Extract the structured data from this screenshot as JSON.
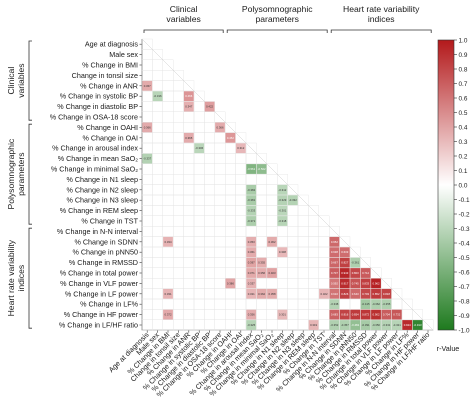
{
  "chart_data": {
    "type": "heatmap",
    "subtype": "lower-triangular correlation matrix",
    "rows": [
      "Age at diagnosis",
      "Male sex",
      "% Change in BMI",
      "Change in tonsil size",
      "% Change in ANR",
      "% Change in systolic BP",
      "% Change in diastolic BP",
      "% Change in OSA-18 score",
      "% Change in OAHI",
      "% Change in OAI",
      "% Change in arousal index",
      "% Change in mean SaO₂",
      "% Change in minimal SaO₂",
      "% Change in N1 sleep",
      "% Change in N2 sleep",
      "% Change in N3 sleep",
      "% Change in REM sleep",
      "% Change in TST",
      "% Change in N-N interval",
      "% Change in SDNN",
      "% Change in pNN50",
      "% Change in RMSSD",
      "% Change in total power",
      "% Change in VLF power",
      "% Change in LF power",
      "% Change in LF%",
      "% Change in HF power",
      "% Change in LF/HF ratio"
    ],
    "columns": [
      "Age at diagnosis",
      "Male sex",
      "% Change in BMI",
      "Change in tonsil size",
      "% Change in ANR",
      "% Change in systolic BP",
      "% Change in diastolic BP",
      "% Change in OSA-18 score",
      "% Change in OAHI",
      "% Change in OAI",
      "% Change in arousal index",
      "% Change in mean SaO₂",
      "% Change in minimal SaO₂",
      "% Change in N1 sleep",
      "% Change in N2 sleep",
      "% Change in N3 sleep",
      "% Change in REM sleep",
      "% Change in TST",
      "% Change in N-N interval",
      "% Change in SDNN",
      "% Change in pNN50",
      "% Change in RMSSD",
      "% Change in total power",
      "% Change in VLF power",
      "% Change in LF power",
      "% Change in LF%",
      "% Change in HF power",
      "% Change in LF/HF ratio"
    ],
    "row_groups": [
      {
        "label_lines": [
          "Clinical",
          "variables"
        ],
        "first": 0,
        "last": 7
      },
      {
        "label_lines": [
          "Polysomnographic",
          "parameters"
        ],
        "first": 8,
        "last": 17
      },
      {
        "label_lines": [
          "Heart rate variability",
          "indices"
        ],
        "first": 18,
        "last": 27
      }
    ],
    "column_groups": [
      {
        "label_lines": [
          "Clinical",
          "variables"
        ],
        "first": 0,
        "last": 7
      },
      {
        "label_lines": [
          "Polysomnographic",
          "parameters"
        ],
        "first": 8,
        "last": 17
      },
      {
        "label_lines": [
          "Heart rate variability",
          "indices"
        ],
        "first": 18,
        "last": 27
      }
    ],
    "cells": [
      {
        "row": 4,
        "col": 0,
        "r": 0.367,
        "label": "0.367"
      },
      {
        "row": 5,
        "col": 1,
        "r": -0.316,
        "label": "-0.316"
      },
      {
        "row": 5,
        "col": 4,
        "r": 0.466,
        "label": "0.466"
      },
      {
        "row": 6,
        "col": 4,
        "r": 0.347,
        "label": "0.347"
      },
      {
        "row": 6,
        "col": 6,
        "r": 0.422,
        "label": "0.422"
      },
      {
        "row": 8,
        "col": 0,
        "r": 0.366,
        "label": "0.366"
      },
      {
        "row": 8,
        "col": 7,
        "r": 0.366,
        "label": "0.366"
      },
      {
        "row": 9,
        "col": 4,
        "r": 0.365,
        "label": "0.365"
      },
      {
        "row": 9,
        "col": 8,
        "r": 0.452,
        "label": "0.452"
      },
      {
        "row": 10,
        "col": 5,
        "r": -0.306,
        "label": "-0.306"
      },
      {
        "row": 10,
        "col": 9,
        "r": 0.312,
        "label": "0.312"
      },
      {
        "row": 11,
        "col": 0,
        "r": -0.337,
        "label": "-0.337"
      },
      {
        "row": 12,
        "col": 10,
        "r": -0.561,
        "label": "-0.561"
      },
      {
        "row": 12,
        "col": 11,
        "r": -0.502,
        "label": "-0.502"
      },
      {
        "row": 14,
        "col": 10,
        "r": -0.382,
        "label": "-0.382"
      },
      {
        "row": 14,
        "col": 13,
        "r": -0.312,
        "label": "-0.312"
      },
      {
        "row": 15,
        "col": 10,
        "r": -0.381,
        "label": "-0.381"
      },
      {
        "row": 15,
        "col": 13,
        "r": -0.329,
        "label": "-0.329"
      },
      {
        "row": 15,
        "col": 14,
        "r": -0.332,
        "label": "-0.332"
      },
      {
        "row": 16,
        "col": 10,
        "r": -0.333,
        "label": "-0.333"
      },
      {
        "row": 16,
        "col": 13,
        "r": -0.301,
        "label": "-0.301"
      },
      {
        "row": 17,
        "col": 10,
        "r": -0.371,
        "label": "-0.371"
      },
      {
        "row": 17,
        "col": 13,
        "r": -0.318,
        "label": "-0.318"
      },
      {
        "row": 19,
        "col": 2,
        "r": 0.334,
        "label": "0.334"
      },
      {
        "row": 19,
        "col": 10,
        "r": 0.353,
        "label": "0.353"
      },
      {
        "row": 19,
        "col": 12,
        "r": 0.362,
        "label": "0.362"
      },
      {
        "row": 19,
        "col": 18,
        "r": 0.652,
        "label": "0.652"
      },
      {
        "row": 20,
        "col": 10,
        "r": 0.361,
        "label": "0.361"
      },
      {
        "row": 20,
        "col": 13,
        "r": 0.308,
        "label": "0.308"
      },
      {
        "row": 20,
        "col": 18,
        "r": 0.638,
        "label": "0.638"
      },
      {
        "row": 20,
        "col": 19,
        "r": 0.633,
        "label": "0.633"
      },
      {
        "row": 21,
        "col": 10,
        "r": 0.397,
        "label": "0.397"
      },
      {
        "row": 21,
        "col": 11,
        "r": 0.355,
        "label": "0.355"
      },
      {
        "row": 21,
        "col": 18,
        "r": 0.667,
        "label": "0.667"
      },
      {
        "row": 21,
        "col": 19,
        "r": 0.827,
        "label": "0.827"
      },
      {
        "row": 21,
        "col": 20,
        "r": -0.361,
        "label": "-0.361"
      },
      {
        "row": 22,
        "col": 10,
        "r": 0.371,
        "label": "0.371"
      },
      {
        "row": 22,
        "col": 11,
        "r": 0.356,
        "label": "0.356"
      },
      {
        "row": 22,
        "col": 12,
        "r": 0.403,
        "label": "0.403"
      },
      {
        "row": 22,
        "col": 18,
        "r": 0.707,
        "label": "0.707"
      },
      {
        "row": 22,
        "col": 19,
        "r": 0.943,
        "label": "0.943"
      },
      {
        "row": 22,
        "col": 20,
        "r": 0.803,
        "label": "0.803"
      },
      {
        "row": 22,
        "col": 21,
        "r": 0.712,
        "label": "0.712"
      },
      {
        "row": 23,
        "col": 8,
        "r": 0.386,
        "label": "0.386"
      },
      {
        "row": 23,
        "col": 10,
        "r": 0.337,
        "label": "0.337"
      },
      {
        "row": 23,
        "col": 18,
        "r": 0.592,
        "label": "0.592"
      },
      {
        "row": 23,
        "col": 19,
        "r": 0.917,
        "label": "0.917"
      },
      {
        "row": 23,
        "col": 20,
        "r": 0.745,
        "label": "0.745"
      },
      {
        "row": 23,
        "col": 21,
        "r": 0.833,
        "label": "0.833"
      },
      {
        "row": 23,
        "col": 22,
        "r": 0.962,
        "label": "0.962"
      },
      {
        "row": 24,
        "col": 2,
        "r": 0.331,
        "label": "0.331"
      },
      {
        "row": 24,
        "col": 10,
        "r": 0.321,
        "label": "0.321"
      },
      {
        "row": 24,
        "col": 11,
        "r": 0.362,
        "label": "0.362"
      },
      {
        "row": 24,
        "col": 12,
        "r": 0.358,
        "label": "0.358"
      },
      {
        "row": 24,
        "col": 17,
        "r": 0.322,
        "label": "0.322"
      },
      {
        "row": 24,
        "col": 18,
        "r": 0.61,
        "label": "0.610"
      },
      {
        "row": 24,
        "col": 19,
        "r": 0.826,
        "label": "0.826"
      },
      {
        "row": 24,
        "col": 20,
        "r": 0.643,
        "label": "0.643"
      },
      {
        "row": 24,
        "col": 21,
        "r": 0.793,
        "label": "0.793"
      },
      {
        "row": 24,
        "col": 22,
        "r": 0.852,
        "label": "0.852"
      },
      {
        "row": 24,
        "col": 23,
        "r": 0.818,
        "label": "0.818"
      },
      {
        "row": 25,
        "col": 18,
        "r": -0.338,
        "label": "-0.338"
      },
      {
        "row": 25,
        "col": 21,
        "r": -0.415,
        "label": "-0.415"
      },
      {
        "row": 25,
        "col": 22,
        "r": -0.362,
        "label": "-0.362"
      },
      {
        "row": 25,
        "col": 23,
        "r": -0.355,
        "label": "-0.355"
      },
      {
        "row": 26,
        "col": 2,
        "r": 0.372,
        "label": "0.372"
      },
      {
        "row": 26,
        "col": 10,
        "r": 0.356,
        "label": "0.356"
      },
      {
        "row": 26,
        "col": 13,
        "r": 0.301,
        "label": "0.301"
      },
      {
        "row": 26,
        "col": 18,
        "r": 0.683,
        "label": "0.683"
      },
      {
        "row": 26,
        "col": 19,
        "r": 0.816,
        "label": "0.816"
      },
      {
        "row": 26,
        "col": 20,
        "r": 0.854,
        "label": "0.854"
      },
      {
        "row": 26,
        "col": 21,
        "r": 0.872,
        "label": "0.872"
      },
      {
        "row": 26,
        "col": 22,
        "r": 0.902,
        "label": "0.902"
      },
      {
        "row": 26,
        "col": 23,
        "r": 0.704,
        "label": "0.704"
      },
      {
        "row": 26,
        "col": 24,
        "r": 0.732,
        "label": "0.732"
      },
      {
        "row": 27,
        "col": 10,
        "r": -0.325,
        "label": "-0.325"
      },
      {
        "row": 27,
        "col": 16,
        "r": 0.319,
        "label": "0.319"
      },
      {
        "row": 27,
        "col": 18,
        "r": -0.352,
        "label": "-0.352"
      },
      {
        "row": 27,
        "col": 19,
        "r": -0.357,
        "label": "-0.357"
      },
      {
        "row": 27,
        "col": 20,
        "r": -0.482,
        "label": "-0.482"
      },
      {
        "row": 27,
        "col": 21,
        "r": -0.391,
        "label": "-0.391"
      },
      {
        "row": 27,
        "col": 22,
        "r": -0.35,
        "label": "-0.350"
      },
      {
        "row": 27,
        "col": 23,
        "r": -0.331,
        "label": "-0.331"
      },
      {
        "row": 27,
        "col": 24,
        "r": -0.321,
        "label": "-0.321"
      },
      {
        "row": 27,
        "col": 25,
        "r": 0.924,
        "label": "0.924"
      },
      {
        "row": 27,
        "col": 26,
        "r": -0.913,
        "label": "-0.913"
      }
    ],
    "colorbar": {
      "title": "r-Value",
      "range": [
        -1.0,
        1.0
      ],
      "ticks": [
        "1.0",
        "0.9",
        "0.8",
        "0.7",
        "0.6",
        "0.5",
        "0.4",
        "0.3",
        "0.2",
        "0.1",
        "0.0",
        "-0.1",
        "-0.2",
        "-0.3",
        "-0.4",
        "-0.5",
        "-0.6",
        "-0.7",
        "-0.8",
        "-0.9",
        "-1.0"
      ],
      "positive_color": "#b3191b",
      "neutral_color": "#ffffff",
      "negative_color": "#1e7a1e"
    },
    "grid": false
  }
}
